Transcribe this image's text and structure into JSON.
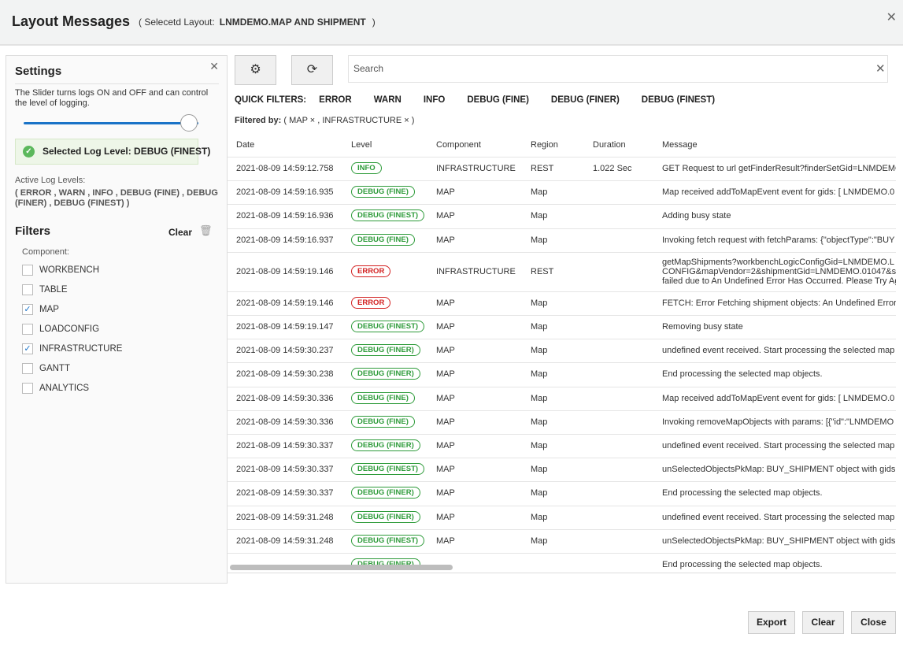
{
  "header": {
    "title": "Layout Messages",
    "selected_prefix": "( Selecetd Layout:",
    "selected_layout": "LNMDEMO.MAP AND SHIPMENT",
    "selected_suffix": ")"
  },
  "settings": {
    "title": "Settings",
    "description": "The Slider turns logs ON and OFF and can control the level of logging.",
    "slider_level": 1.0,
    "selected_level": "Selected Log Level: DEBUG (FINEST)",
    "active_label": "Active Log Levels:",
    "active_levels": "( ERROR , WARN , INFO , DEBUG (FINE) , DEBUG (FINER) , DEBUG (FINEST) )"
  },
  "filters": {
    "title": "Filters",
    "clear": "Clear",
    "component_label": "Component:",
    "items": [
      {
        "label": "WORKBENCH",
        "checked": false
      },
      {
        "label": "TABLE",
        "checked": false
      },
      {
        "label": "MAP",
        "checked": true
      },
      {
        "label": "LOADCONFIG",
        "checked": false
      },
      {
        "label": "INFRASTRUCTURE",
        "checked": true
      },
      {
        "label": "GANTT",
        "checked": false
      },
      {
        "label": "ANALYTICS",
        "checked": false
      }
    ]
  },
  "search": {
    "placeholder": "Search"
  },
  "quick_filters": {
    "label": "QUICK FILTERS:",
    "items": [
      "ERROR",
      "WARN",
      "INFO",
      "DEBUG (FINE)",
      "DEBUG (FINER)",
      "DEBUG (FINEST)"
    ]
  },
  "filtered_by": {
    "label": "Filtered by:",
    "value": "( MAP × , INFRASTRUCTURE × )"
  },
  "table": {
    "columns": [
      "Date",
      "Level",
      "Component",
      "Region",
      "Duration",
      "Message"
    ],
    "rows": [
      [
        "2021-08-09 14:59:12.758",
        "INFO",
        "INFRASTRUCTURE",
        "REST",
        "1.022 Sec",
        "GET Request to url getFinderResult?finderSetGid=LNMDEMO"
      ],
      [
        "2021-08-09 14:59:16.935",
        "DEBUG (FINE)",
        "MAP",
        "Map",
        "",
        "Map received addToMapEvent event for gids: [ LNMDEMO.0"
      ],
      [
        "2021-08-09 14:59:16.936",
        "DEBUG (FINEST)",
        "MAP",
        "Map",
        "",
        "Adding busy state"
      ],
      [
        "2021-08-09 14:59:16.937",
        "DEBUG (FINE)",
        "MAP",
        "Map",
        "",
        "Invoking fetch request with fetchParams: {\"objectType\":\"BUY"
      ],
      [
        "2021-08-09 14:59:19.146",
        "ERROR",
        "INFRASTRUCTURE",
        "REST",
        "",
        "getMapShipments?workbenchLogicConfigGid=LNMDEMO.L\nCONFIG&mapVendor=2&shipmentGid=LNMDEMO.01047&s\nfailed due to An Undefined Error Has Occurred. Please Try Ag"
      ],
      [
        "2021-08-09 14:59:19.146",
        "ERROR",
        "MAP",
        "Map",
        "",
        "FETCH: Error Fetching shipment objects: An Undefined Error"
      ],
      [
        "2021-08-09 14:59:19.147",
        "DEBUG (FINEST)",
        "MAP",
        "Map",
        "",
        "Removing busy state"
      ],
      [
        "2021-08-09 14:59:30.237",
        "DEBUG (FINER)",
        "MAP",
        "Map",
        "",
        "undefined event received. Start processing the selected map"
      ],
      [
        "2021-08-09 14:59:30.238",
        "DEBUG (FINER)",
        "MAP",
        "Map",
        "",
        "End processing the selected map objects."
      ],
      [
        "2021-08-09 14:59:30.336",
        "DEBUG (FINE)",
        "MAP",
        "Map",
        "",
        "Map received addToMapEvent event for gids: [ LNMDEMO.0"
      ],
      [
        "2021-08-09 14:59:30.336",
        "DEBUG (FINE)",
        "MAP",
        "Map",
        "",
        "Invoking removeMapObjects with params: [{\"id\":\"LNMDEMO"
      ],
      [
        "2021-08-09 14:59:30.337",
        "DEBUG (FINER)",
        "MAP",
        "Map",
        "",
        "undefined event received. Start processing the selected map"
      ],
      [
        "2021-08-09 14:59:30.337",
        "DEBUG (FINEST)",
        "MAP",
        "Map",
        "",
        "unSelectedObjectsPkMap: BUY_SHIPMENT object with gids"
      ],
      [
        "2021-08-09 14:59:30.337",
        "DEBUG (FINER)",
        "MAP",
        "Map",
        "",
        "End processing the selected map objects."
      ],
      [
        "2021-08-09 14:59:31.248",
        "DEBUG (FINER)",
        "MAP",
        "Map",
        "",
        "undefined event received. Start processing the selected map"
      ],
      [
        "2021-08-09 14:59:31.248",
        "DEBUG (FINEST)",
        "MAP",
        "Map",
        "",
        "unSelectedObjectsPkMap: BUY_SHIPMENT object with gids"
      ],
      [
        "",
        "DEBUG (FINER)",
        "",
        "",
        "",
        "End processing the selected map objects."
      ]
    ]
  },
  "footer": {
    "export": "Export",
    "clear": "Clear",
    "close": "Close"
  },
  "colors": {
    "accent": "#1a73c7",
    "success": "#2e9b3a",
    "error": "#d32222"
  }
}
